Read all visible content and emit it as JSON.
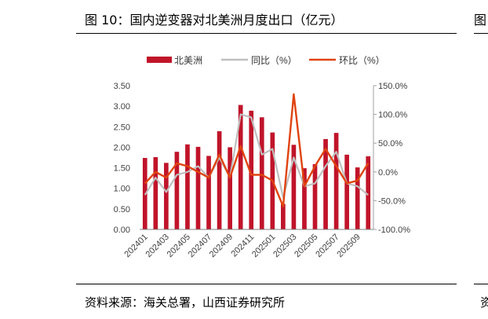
{
  "figure": {
    "title": "图 10：国内逆变器对北美洲月度出口（亿元）",
    "source": "资料来源：海关总署，山西证券研究所",
    "next_panel_title_fragment": "图",
    "next_panel_source_fragment": "资"
  },
  "colors": {
    "bar": "#C0142A",
    "yoy": "#BFBFBF",
    "mom": "#E0430F"
  },
  "chart_data": {
    "type": "bar",
    "x": [
      "202401",
      "202402",
      "202403",
      "202404",
      "202405",
      "202406",
      "202407",
      "202408",
      "202409",
      "202410",
      "202411",
      "202412",
      "202501",
      "202502",
      "202503",
      "202504",
      "202505",
      "202506",
      "202507",
      "202508",
      "202509",
      "202510"
    ],
    "tick_labels": [
      "202401",
      "202403",
      "202405",
      "202407",
      "202409",
      "202411",
      "202501",
      "202503",
      "202505",
      "202507",
      "202509"
    ],
    "series": [
      {
        "name": "北美洲",
        "type": "bar",
        "axis": "left",
        "values": [
          1.74,
          1.76,
          1.62,
          1.89,
          2.07,
          2.01,
          1.79,
          2.39,
          2.0,
          3.03,
          2.89,
          2.73,
          2.36,
          0.62,
          2.06,
          1.49,
          1.59,
          2.2,
          2.35,
          1.82,
          1.51,
          1.78
        ]
      },
      {
        "name": "同比（%）",
        "type": "line",
        "axis": "right",
        "values": [
          -40,
          -10,
          -35,
          -5,
          0,
          10,
          -10,
          25,
          -10,
          100,
          95,
          30,
          40,
          -45,
          25,
          -25,
          -20,
          10,
          35,
          -20,
          -25,
          -40
        ]
      },
      {
        "name": "环比（%）",
        "type": "line",
        "axis": "right",
        "values": [
          -20,
          0,
          -10,
          15,
          10,
          0,
          -10,
          30,
          -10,
          45,
          -5,
          -5,
          -15,
          -60,
          135,
          -25,
          10,
          40,
          10,
          -20,
          -15,
          15
        ]
      }
    ],
    "y_left": {
      "lim": [
        0,
        3.5
      ],
      "ticks": [
        "0.00",
        "0.50",
        "1.00",
        "1.50",
        "2.00",
        "2.50",
        "3.00",
        "3.50"
      ]
    },
    "y_right": {
      "lim": [
        -100,
        150
      ],
      "ticks": [
        "-100.0%",
        "-50.0%",
        "0.0%",
        "50.0%",
        "100.0%",
        "150.0%"
      ]
    },
    "legend_position": "top",
    "grid": false
  }
}
